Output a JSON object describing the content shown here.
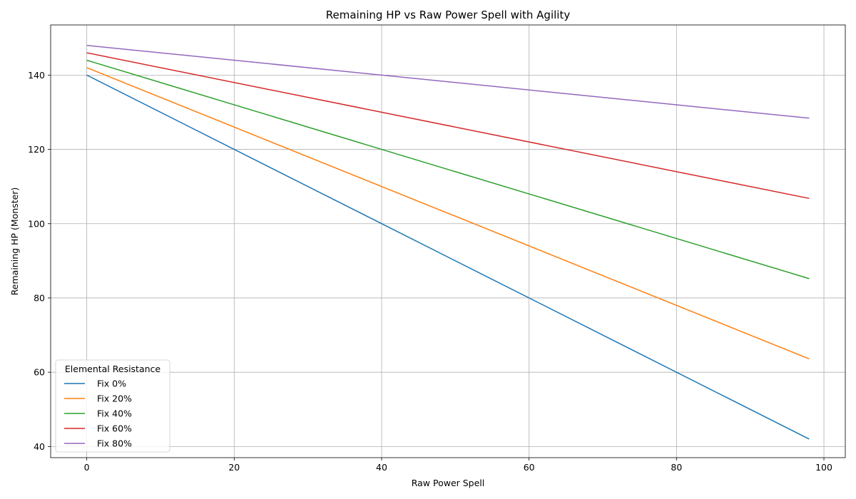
{
  "chart_data": {
    "type": "line",
    "title": "Remaining HP vs Raw Power Spell with Agility",
    "xlabel": "Raw Power Spell",
    "ylabel": "Remaining HP (Monster)",
    "xlim": [
      -4.9,
      102.9
    ],
    "ylim": [
      37.0,
      153.5
    ],
    "x_ticks": [
      0,
      20,
      40,
      60,
      80,
      100
    ],
    "y_ticks": [
      40,
      60,
      80,
      100,
      120,
      140
    ],
    "grid": true,
    "legend": {
      "title": "Elemental Resistance",
      "position": "lower-left"
    },
    "series": [
      {
        "name": "Fix 0%",
        "color": "#1f77b4",
        "x": [
          0,
          98
        ],
        "y": [
          140,
          42
        ]
      },
      {
        "name": "Fix 20%",
        "color": "#ff7f0e",
        "x": [
          0,
          98
        ],
        "y": [
          142,
          63.6
        ]
      },
      {
        "name": "Fix 40%",
        "color": "#2ca02c",
        "x": [
          0,
          98
        ],
        "y": [
          144,
          85.2
        ]
      },
      {
        "name": "Fix 60%",
        "color": "#d62728",
        "x": [
          0,
          98
        ],
        "y": [
          146,
          106.8
        ]
      },
      {
        "name": "Fix 80%",
        "color": "#9467bd",
        "x": [
          0,
          98
        ],
        "y": [
          148,
          128.4
        ]
      }
    ]
  }
}
